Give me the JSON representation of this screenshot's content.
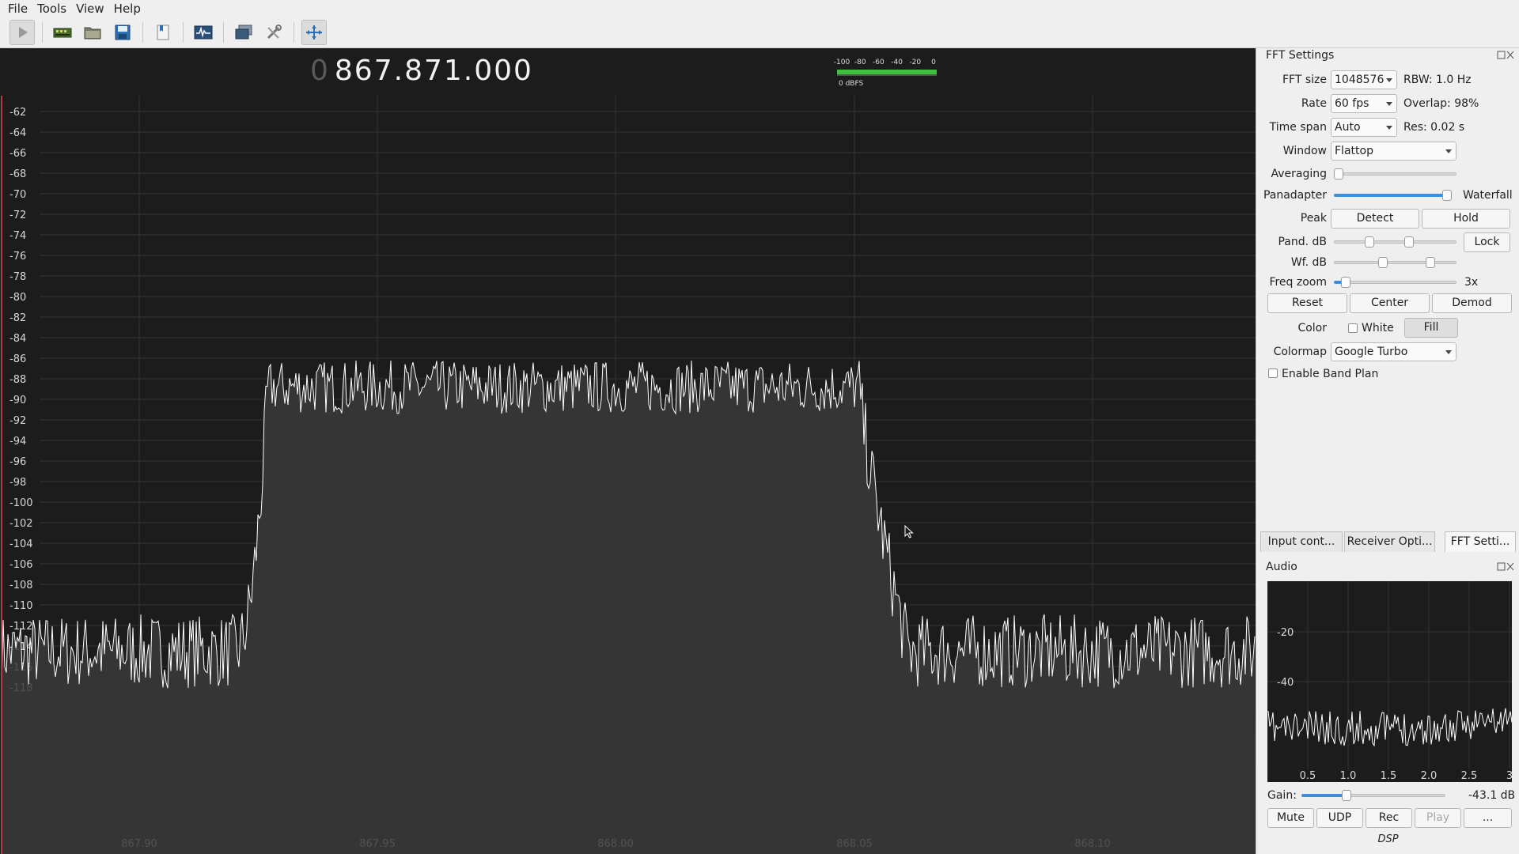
{
  "menu": [
    "File",
    "Tools",
    "View",
    "Help"
  ],
  "toolbar": {
    "buttons": [
      {
        "name": "start-dsp-button",
        "icon": "play-icon"
      },
      {
        "name": "io-devices-button",
        "icon": "hardware-icon"
      },
      {
        "name": "load-settings-button",
        "icon": "folder-icon"
      },
      {
        "name": "save-settings-button",
        "icon": "floppy-icon"
      },
      {
        "name": "iq-tool-button",
        "icon": "bookmark-icon"
      },
      {
        "name": "fft-button",
        "icon": "spectrum-icon"
      },
      {
        "name": "remote-control-button",
        "icon": "monitor-icon"
      },
      {
        "name": "options-button",
        "icon": "tools-icon"
      },
      {
        "name": "center-button",
        "icon": "arrows-icon"
      }
    ]
  },
  "readout": {
    "frequency_dim": "0",
    "frequency": "867.871.000",
    "meter_scale": [
      "-100",
      "-80",
      "-60",
      "-40",
      "-20",
      "0"
    ],
    "meter_label": "0 dBFS"
  },
  "spectrum": {
    "y_labels": [
      "-62",
      "-64",
      "-66",
      "-68",
      "-70",
      "-72",
      "-74",
      "-76",
      "-78",
      "-80",
      "-82",
      "-84",
      "-86",
      "-88",
      "-90",
      "-92",
      "-94",
      "-96",
      "-98",
      "-100",
      "-102",
      "-104",
      "-106",
      "-108",
      "-110",
      "-112",
      "-114",
      "-116",
      "-118"
    ],
    "x_labels": [
      "867.90",
      "867.95",
      "868.00",
      "868.05",
      "868.10"
    ],
    "channel_start_mhz": 867.927,
    "channel_end_mhz": 868.051,
    "in_band_level_db": -88.8,
    "noise_floor_db": -114.5,
    "colors": {
      "background": "#1c1c1c",
      "trace": "#ffffff",
      "fill": "#3a3a3a",
      "grid": "#333333",
      "marker": "#b23b3b"
    }
  },
  "fft_settings": {
    "title": "FFT Settings",
    "fft_size_label": "FFT size",
    "fft_size_value": "1048576",
    "rbw": "RBW: 1.0 Hz",
    "rate_label": "Rate",
    "rate_value": "60 fps",
    "overlap": "Overlap: 98%",
    "time_span_label": "Time span",
    "time_span_value": "Auto",
    "res": "Res: 0.02 s",
    "window_label": "Window",
    "window_value": "Flattop",
    "averaging_label": "Averaging",
    "averaging_level": 0.0,
    "panadapter_label": "Panadapter",
    "panadapter_level": 1.0,
    "waterfall_label": "Waterfall",
    "peak_label": "Peak",
    "detect_label": "Detect",
    "hold_label": "Hold",
    "pand_db_label": "Pand. dB",
    "pand_db_low": 0.27,
    "pand_db_high": 0.62,
    "lock_label": "Lock",
    "wf_db_label": "Wf. dB",
    "wf_db_low": 0.39,
    "wf_db_high": 0.81,
    "freq_zoom_label": "Freq zoom",
    "freq_zoom_level": 0.06,
    "freq_zoom_value": "3x",
    "reset_label": "Reset",
    "center_label": "Center",
    "demod_label": "Demod",
    "color_label": "Color",
    "white_label": "White",
    "fill_label": "Fill",
    "colormap_label": "Colormap",
    "colormap_value": "Google Turbo",
    "band_plan_label": "Enable Band Plan"
  },
  "tabs": [
    "Input cont...",
    "Receiver Opti...",
    "FFT Setti..."
  ],
  "audio": {
    "title": "Audio",
    "y_labels": [
      "-20",
      "-40"
    ],
    "x_labels": [
      "0.5",
      "1.0",
      "1.5",
      "2.0",
      "2.5",
      "3"
    ],
    "gain_label": "Gain:",
    "gain_level": 0.3,
    "gain_value": "-43.1 dB",
    "mute_label": "Mute",
    "udp_label": "UDP",
    "rec_label": "Rec",
    "play_label": "Play",
    "more_label": "...",
    "dsp_label": "DSP"
  }
}
